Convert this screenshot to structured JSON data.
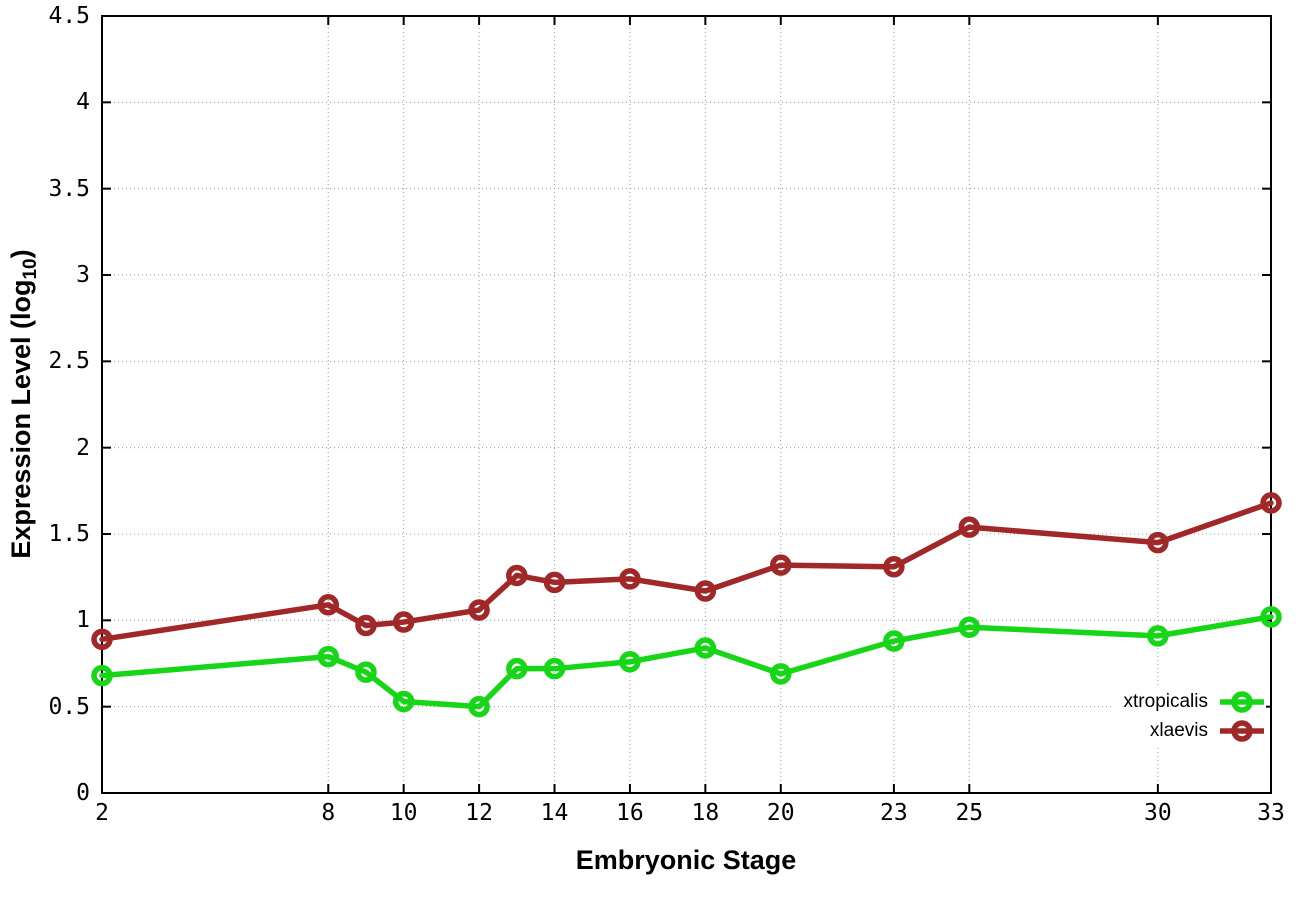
{
  "chart_data": {
    "type": "line",
    "title": "",
    "xlabel": "Embryonic Stage",
    "ylabel": "Expression Level (log10)",
    "ylabel_parts": {
      "main": "Expression Level (log",
      "sub": "10",
      "end": ")"
    },
    "xlim": [
      2,
      33
    ],
    "ylim": [
      0,
      4.5
    ],
    "xticks": [
      2,
      8,
      10,
      12,
      14,
      16,
      18,
      20,
      23,
      25,
      30,
      33
    ],
    "yticks": [
      0,
      0.5,
      1,
      1.5,
      2,
      2.5,
      3,
      3.5,
      4,
      4.5
    ],
    "grid": true,
    "legend_position": "inside-bottom-right",
    "x": [
      2,
      8,
      9,
      10,
      12,
      13,
      14,
      16,
      18,
      20,
      23,
      25,
      30,
      33
    ],
    "series": [
      {
        "name": "xtropicalis",
        "color": "#17d517",
        "values": [
          0.68,
          0.79,
          0.7,
          0.53,
          0.5,
          0.72,
          0.72,
          0.76,
          0.84,
          0.69,
          0.88,
          0.96,
          0.91,
          1.02
        ]
      },
      {
        "name": "xlaevis",
        "color": "#a02828",
        "values": [
          0.89,
          1.09,
          0.97,
          0.99,
          1.06,
          1.26,
          1.22,
          1.24,
          1.17,
          1.32,
          1.31,
          1.54,
          1.45,
          1.68
        ]
      }
    ]
  },
  "colors": {
    "grid": "#9b9b9b",
    "axis": "#000000",
    "background": "#ffffff"
  }
}
